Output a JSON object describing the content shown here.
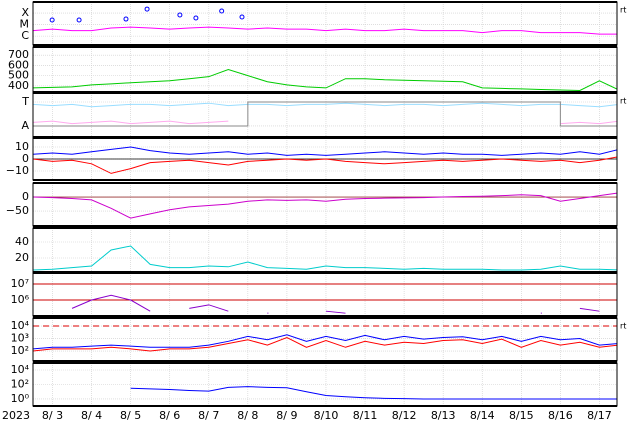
{
  "chart_data": [
    {
      "type": "line",
      "log": true,
      "grid": true,
      "side_label": "rt",
      "x": [
        2.5,
        3,
        3.5,
        4,
        4.5,
        5,
        5.5,
        6,
        6.5,
        7,
        7.5,
        8,
        8.5,
        9,
        9.5,
        10,
        10.5,
        11,
        11.5,
        12,
        12.5,
        13,
        13.5,
        14,
        14.5,
        15,
        15.5,
        16,
        16.5,
        17,
        17.5
      ],
      "ylim": [
        1.7e-07,
        0.0009
      ],
      "yticks": [
        {
          "value": 1e-06,
          "label": "C"
        },
        {
          "value": 1e-05,
          "label": "M"
        },
        {
          "value": 0.0001,
          "label": "X"
        }
      ],
      "series": [
        {
          "color": "#ff00ff",
          "values": [
            3e-06,
            4e-06,
            3e-06,
            3e-06,
            5e-06,
            6e-06,
            5e-06,
            4e-06,
            5e-06,
            6e-06,
            5e-06,
            4e-06,
            5e-06,
            4e-06,
            4e-06,
            3e-06,
            4e-06,
            3e-06,
            3e-06,
            4e-06,
            3e-06,
            3e-06,
            3e-06,
            2e-06,
            3e-06,
            3e-06,
            2e-06,
            2e-06,
            2e-06,
            1.5e-06,
            1.5e-06
          ]
        }
      ],
      "markers": {
        "color": "#0000ff",
        "x": [
          2.99,
          3.68,
          4.88,
          5.42,
          6.26,
          6.67,
          7.33,
          7.85
        ],
        "values": [
          2.5e-05,
          2.5e-05,
          3e-05,
          0.00022,
          6.7e-05,
          3.7e-05,
          0.00015,
          4.5e-05
        ]
      }
    },
    {
      "type": "line",
      "log": false,
      "grid": true,
      "x": [
        2.5,
        3,
        3.5,
        4,
        4.5,
        5,
        5.5,
        6,
        6.5,
        7,
        7.5,
        8,
        8.5,
        9,
        9.5,
        10,
        10.5,
        11,
        11.5,
        12,
        12.5,
        13,
        13.5,
        14,
        14.5,
        15,
        15.5,
        16,
        16.5,
        17,
        17.5
      ],
      "ylim": [
        340,
        780
      ],
      "yticks": [
        400,
        500,
        600,
        700
      ],
      "series": [
        {
          "color": "#00cc00",
          "values": [
            380,
            385,
            390,
            410,
            420,
            430,
            440,
            450,
            470,
            490,
            560,
            500,
            440,
            410,
            390,
            380,
            470,
            470,
            460,
            455,
            450,
            445,
            440,
            380,
            375,
            370,
            365,
            360,
            355,
            450,
            360
          ]
        }
      ]
    },
    {
      "type": "line",
      "log": false,
      "grid": true,
      "side_label": "rt",
      "x": [
        2.5,
        3,
        3.5,
        4,
        4.5,
        5,
        5.5,
        6,
        6.5,
        7,
        7.5,
        8,
        8.5,
        9,
        9.5,
        10,
        10.5,
        11,
        11.5,
        12,
        12.5,
        13,
        13.5,
        14,
        14.5,
        15,
        15.5,
        16,
        16.5,
        17,
        17.5
      ],
      "ylim": [
        -0.46,
        1.375
      ],
      "yticks": [
        {
          "value": 0,
          "label": "A"
        },
        {
          "value": 1,
          "label": "T"
        }
      ],
      "series": [
        {
          "color": "#99ddff",
          "values": [
            0.9,
            0.85,
            0.9,
            0.8,
            0.85,
            0.9,
            0.9,
            0.85,
            0.9,
            0.95,
            0.85,
            0.9,
            0.9,
            0.85,
            0.9,
            0.9,
            0.95,
            0.9,
            0.85,
            0.9,
            0.9,
            0.85,
            0.9,
            0.95,
            0.9,
            0.85,
            0.9,
            0.9,
            0.85,
            0.8,
            0.9
          ]
        },
        {
          "color": "#ffaaee",
          "values": [
            0.15,
            0.2,
            0.1,
            0.15,
            0.2,
            0.1,
            0.15,
            0.2,
            0.1,
            0.15,
            0.2,
            null,
            null,
            null,
            null,
            null,
            null,
            null,
            null,
            null,
            null,
            null,
            null,
            null,
            null,
            null,
            null,
            0.1,
            0.15,
            0.1,
            0.2
          ]
        },
        {
          "color": "#888888",
          "step": true,
          "values": [
            0,
            0,
            0,
            0,
            0,
            0,
            0,
            0,
            0,
            0,
            0,
            1,
            1,
            1,
            1,
            1,
            1,
            1,
            1,
            1,
            1,
            1,
            1,
            1,
            1,
            1,
            1,
            0,
            0,
            0,
            1
          ]
        }
      ]
    },
    {
      "type": "line",
      "log": false,
      "grid": true,
      "zero_line": "#000000",
      "x": [
        2.5,
        3,
        3.5,
        4,
        4.5,
        5,
        5.5,
        6,
        6.5,
        7,
        7.5,
        8,
        8.5,
        9,
        9.5,
        10,
        10.5,
        11,
        11.5,
        12,
        12.5,
        13,
        13.5,
        14,
        14.5,
        15,
        15.5,
        16,
        16.5,
        17,
        17.5
      ],
      "ylim": [
        -17.5,
        17.5
      ],
      "yticks": [
        {
          "value": -10,
          "label": "−10"
        },
        0,
        10
      ],
      "series": [
        {
          "color": "#0000ff",
          "values": [
            4,
            5,
            4,
            6,
            8,
            10,
            7,
            5,
            4,
            5,
            6,
            4,
            5,
            3,
            4,
            3,
            4,
            5,
            6,
            5,
            4,
            5,
            4,
            4,
            3,
            4,
            5,
            4,
            6,
            4,
            8
          ]
        },
        {
          "color": "#ff0000",
          "values": [
            0,
            -2,
            -1,
            -4,
            -12,
            -8,
            -3,
            -2,
            -1,
            -3,
            -5,
            -2,
            -1,
            0,
            -1,
            0,
            -2,
            -3,
            -4,
            -3,
            -2,
            -1,
            -2,
            -1,
            0,
            -1,
            -2,
            -1,
            -3,
            -1,
            2
          ]
        }
      ]
    },
    {
      "type": "line",
      "log": false,
      "grid": true,
      "zero_line": "#993333",
      "x": [
        2.5,
        3,
        3.5,
        4,
        4.5,
        5,
        5.5,
        6,
        6.5,
        7,
        7.5,
        8,
        8.5,
        9,
        9.5,
        10,
        10.5,
        11,
        11.5,
        12,
        12.5,
        13,
        13.5,
        14,
        14.5,
        15,
        15.5,
        16,
        16.5,
        17,
        17.5
      ],
      "ylim": [
        -103,
        50
      ],
      "yticks": [
        {
          "value": -50,
          "label": "−50"
        },
        0
      ],
      "series": [
        {
          "color": "#cc00cc",
          "values": [
            0,
            -2,
            -5,
            -10,
            -40,
            -75,
            -60,
            -45,
            -35,
            -30,
            -25,
            -15,
            -10,
            -12,
            -10,
            -15,
            -8,
            -5,
            -4,
            -3,
            -2,
            0,
            2,
            3,
            5,
            8,
            5,
            -15,
            -5,
            5,
            15
          ]
        }
      ]
    },
    {
      "type": "line",
      "log": false,
      "grid": true,
      "x": [
        2.5,
        3,
        3.5,
        4,
        4.5,
        5,
        5.5,
        6,
        6.5,
        7,
        7.5,
        8,
        8.5,
        9,
        9.5,
        10,
        10.5,
        11,
        11.5,
        12,
        12.5,
        13,
        13.5,
        14,
        14.5,
        15,
        15.5,
        16,
        16.5,
        17,
        17.5
      ],
      "ylim": [
        2.5,
        57.5
      ],
      "yticks": [
        20,
        40
      ],
      "series": [
        {
          "color": "#00cccc",
          "values": [
            5,
            6,
            8,
            10,
            30,
            35,
            12,
            8,
            8,
            10,
            9,
            15,
            8,
            7,
            6,
            10,
            8,
            8,
            7,
            6,
            7,
            6,
            6,
            6,
            5,
            5,
            6,
            10,
            6,
            6,
            5
          ]
        }
      ]
    },
    {
      "type": "line",
      "log": true,
      "grid": true,
      "thresholds": [
        1000000.0,
        10000000.0
      ],
      "threshold_color": "#cc0000",
      "threshold_dashed": false,
      "x": [
        2.5,
        3,
        3.5,
        4,
        4.5,
        5,
        5.5,
        6,
        6.5,
        7,
        7.5,
        8,
        8.5,
        9,
        9.5,
        10,
        10.5,
        11,
        11.5,
        12,
        12.5,
        13,
        13.5,
        14,
        14.5,
        15,
        15.5,
        16,
        16.5,
        17,
        17.5
      ],
      "ylim": [
        100000.0,
        49000000.0
      ],
      "yticks": [
        {
          "value": 1000000.0,
          "label": "10⁶"
        },
        {
          "value": 10000000.0,
          "label": "10⁷"
        }
      ],
      "series": [
        {
          "color": "#8800cc",
          "values": [
            null,
            null,
            300000.0,
            1000000.0,
            2000000.0,
            1000000.0,
            200000.0,
            null,
            300000.0,
            500000.0,
            200000.0,
            null,
            150000.0,
            null,
            null,
            200000.0,
            150000.0,
            null,
            null,
            null,
            null,
            null,
            null,
            null,
            null,
            null,
            150000.0,
            null,
            300000.0,
            200000.0,
            null
          ]
        }
      ]
    },
    {
      "type": "line",
      "log": true,
      "grid": true,
      "side_label": "rt",
      "thresholds": [
        10000.0
      ],
      "threshold_color": "#dd0000",
      "threshold_dashed": true,
      "x": [
        2.5,
        3,
        3.5,
        4,
        4.5,
        5,
        5.5,
        6,
        6.5,
        7,
        7.5,
        8,
        8.5,
        9,
        9.5,
        10,
        10.5,
        11,
        11.5,
        12,
        12.5,
        13,
        13.5,
        14,
        14.5,
        15,
        15.5,
        16,
        16.5,
        17,
        17.5
      ],
      "ylim": [
        16,
        44000
      ],
      "yticks": [
        {
          "value": 100,
          "label": "10²"
        },
        {
          "value": 1000,
          "label": "10³"
        },
        {
          "value": 10000,
          "label": "10⁴"
        }
      ],
      "series": [
        {
          "color": "#0000ff",
          "values": [
            150,
            200,
            200,
            250,
            300,
            250,
            200,
            200,
            200,
            300,
            600,
            1500,
            800,
            2000,
            600,
            1500,
            700,
            1800,
            800,
            1500,
            900,
            1200,
            1400,
            800,
            1500,
            600,
            1500,
            800,
            1000,
            300,
            400
          ]
        },
        {
          "color": "#ff0000",
          "values": [
            100,
            150,
            150,
            150,
            200,
            150,
            100,
            150,
            150,
            200,
            400,
            800,
            300,
            1200,
            200,
            700,
            200,
            600,
            300,
            500,
            400,
            700,
            800,
            400,
            900,
            200,
            700,
            300,
            500,
            200,
            300
          ]
        }
      ]
    },
    {
      "type": "line",
      "log": true,
      "grid": true,
      "x": [
        2.5,
        3,
        3.5,
        4,
        4.5,
        5,
        5.5,
        6,
        6.5,
        7,
        7.5,
        8,
        8.5,
        9,
        9.5,
        10,
        10.5,
        11,
        11.5,
        12,
        12.5,
        13,
        13.5,
        14,
        14.5,
        15,
        15.5,
        16,
        16.5,
        17,
        17.5
      ],
      "ylim": [
        0.107,
        93000
      ],
      "yticks": [
        {
          "value": 1,
          "label": "10⁰"
        },
        {
          "value": 100,
          "label": "10²"
        },
        {
          "value": 10000,
          "label": "10⁴"
        }
      ],
      "series": [
        {
          "color": "#0000ff",
          "values": [
            null,
            null,
            null,
            null,
            null,
            30,
            25,
            20,
            15,
            12,
            40,
            50,
            40,
            35,
            10,
            3,
            2,
            1.5,
            1.2,
            1.1,
            1,
            1,
            1,
            1,
            1,
            1,
            1,
            1,
            1,
            1,
            1
          ]
        }
      ],
      "year_label": "2023",
      "xlim": [
        2.5,
        17.45
      ],
      "xticks": [
        {
          "value": 3,
          "label": "8/ 3"
        },
        {
          "value": 4,
          "label": "8/ 4"
        },
        {
          "value": 5,
          "label": "8/ 5"
        },
        {
          "value": 6,
          "label": "8/ 6"
        },
        {
          "value": 7,
          "label": "8/ 7"
        },
        {
          "value": 8,
          "label": "8/ 8"
        },
        {
          "value": 9,
          "label": "8/ 9"
        },
        {
          "value": 10,
          "label": "8/10"
        },
        {
          "value": 11,
          "label": "8/11"
        },
        {
          "value": 12,
          "label": "8/12"
        },
        {
          "value": 13,
          "label": "8/13"
        },
        {
          "value": 14,
          "label": "8/14"
        },
        {
          "value": 15,
          "label": "8/15"
        },
        {
          "value": 16,
          "label": "8/16"
        },
        {
          "value": 17,
          "label": "8/17"
        }
      ]
    }
  ]
}
